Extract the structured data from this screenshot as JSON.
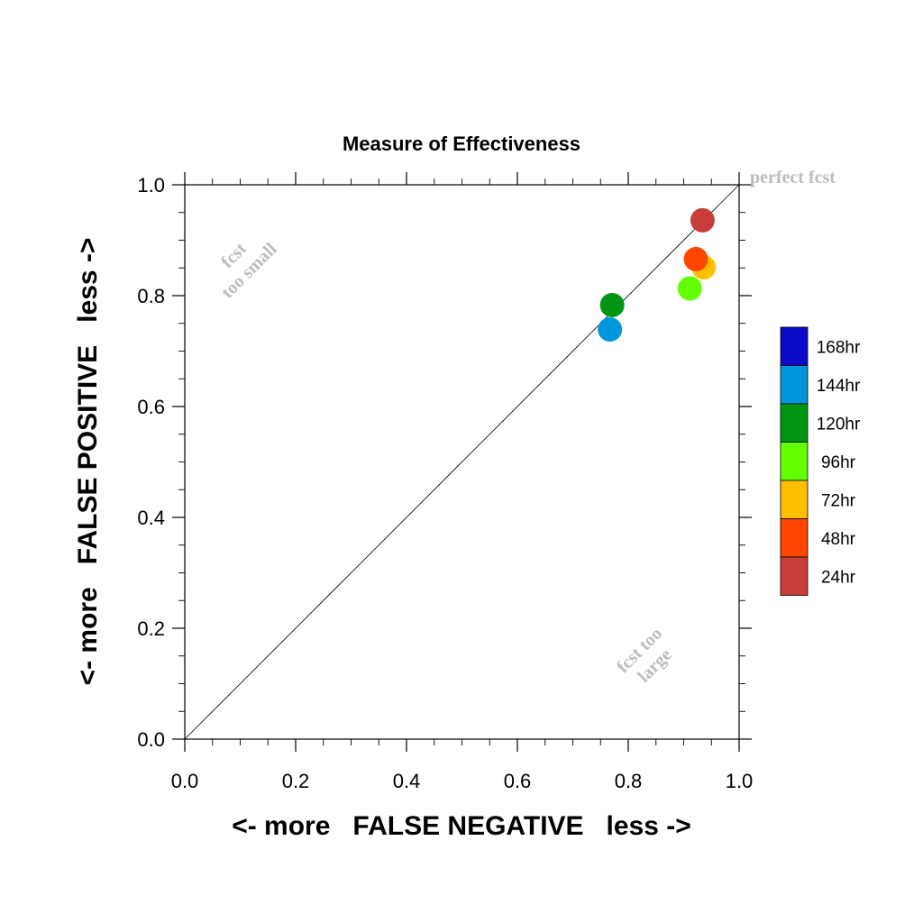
{
  "chart_data": {
    "type": "scatter",
    "title": "Measure of Effectiveness",
    "xlabel": "<- more   FALSE NEGATIVE   less ->",
    "ylabel": "<- more   FALSE POSITIVE   less ->",
    "xlim": [
      0.0,
      1.0
    ],
    "ylim": [
      0.0,
      1.0
    ],
    "x_ticks": [
      "0.0",
      "0.2",
      "0.4",
      "0.6",
      "0.8",
      "1.0"
    ],
    "y_ticks": [
      "0.0",
      "0.2",
      "0.4",
      "0.6",
      "0.8",
      "1.0"
    ],
    "grid": false,
    "diagonal_line": true,
    "annotations": {
      "perfect": "perfect fcst",
      "too_small_1": "fcst",
      "too_small_2": "too small",
      "too_large_1": "fcst too",
      "too_large_2": "large"
    },
    "legend": {
      "placement": "right",
      "entries": [
        {
          "label": "168hr",
          "color": "#0a0ac8"
        },
        {
          "label": "144hr",
          "color": "#0096dc"
        },
        {
          "label": "120hr",
          "color": "#009614"
        },
        {
          "label": "96hr",
          "color": "#64ff00"
        },
        {
          "label": "72hr",
          "color": "#ffbe00"
        },
        {
          "label": "48hr",
          "color": "#ff4600"
        },
        {
          "label": "24hr",
          "color": "#c83c3c"
        }
      ]
    },
    "series": [
      {
        "name": "144hr",
        "color": "#0096dc",
        "x": 0.767,
        "y": 0.739
      },
      {
        "name": "120hr",
        "color": "#009614",
        "x": 0.771,
        "y": 0.783
      },
      {
        "name": "96hr",
        "color": "#64ff00",
        "x": 0.911,
        "y": 0.813
      },
      {
        "name": "72hr",
        "color": "#ffbe00",
        "x": 0.936,
        "y": 0.851
      },
      {
        "name": "48hr",
        "color": "#ff4600",
        "x": 0.922,
        "y": 0.866
      },
      {
        "name": "24hr",
        "color": "#c83c3c",
        "x": 0.934,
        "y": 0.936
      }
    ]
  }
}
